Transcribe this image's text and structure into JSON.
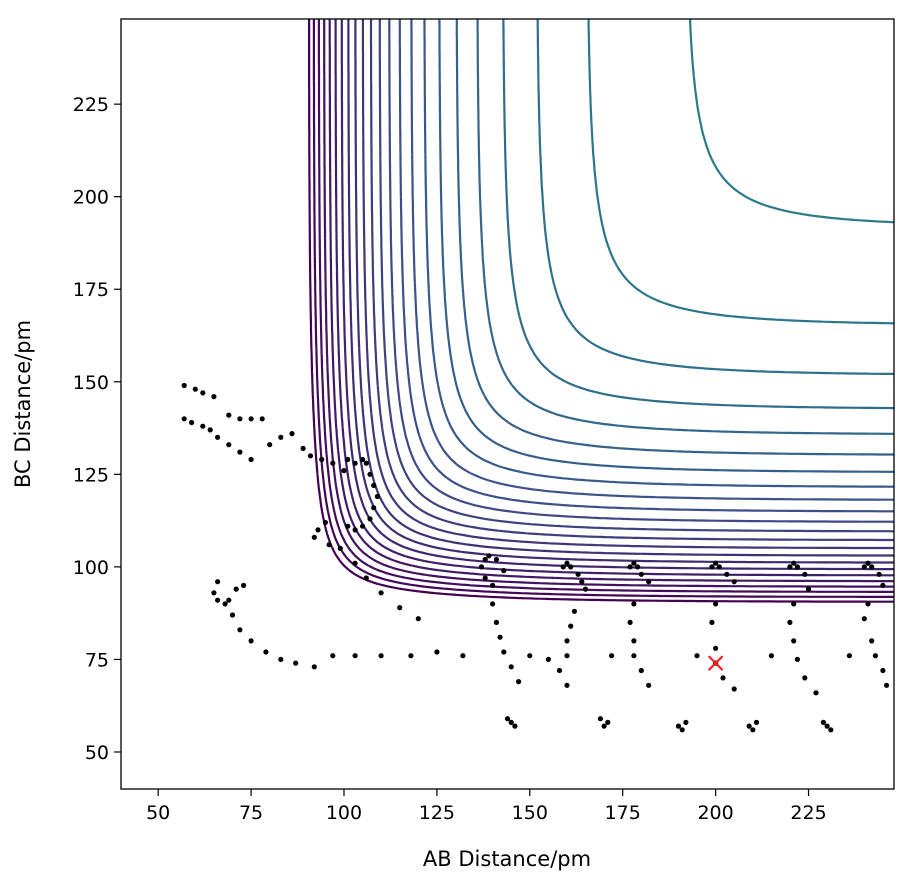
{
  "chart_data": {
    "type": "contour",
    "title": "",
    "xlabel": "AB Distance/pm",
    "ylabel": "BC Distance/pm",
    "xlim": [
      40,
      248
    ],
    "ylim": [
      40,
      248
    ],
    "x_ticks": [
      50,
      75,
      100,
      125,
      150,
      175,
      200,
      225
    ],
    "y_ticks": [
      50,
      75,
      100,
      125,
      150,
      175,
      200,
      225
    ],
    "x_tick_labels": [
      "50",
      "75",
      "100",
      "125",
      "150",
      "175",
      "200",
      "225"
    ],
    "y_tick_labels": [
      "50",
      "75",
      "100",
      "125",
      "150",
      "175",
      "200",
      "225"
    ],
    "colormap": "viridis",
    "colormap_stops": [
      "#440154",
      "#3b528b",
      "#21918c",
      "#5ec962",
      "#fde725"
    ],
    "grid": false,
    "legend": "none",
    "potential_surface": {
      "well_depth": 1,
      "equilibrium_distance_pm": 74,
      "morse_a": 0.035,
      "contour_levels_count": 55,
      "contour_level_min": -1.12,
      "contour_level_max": 1.55
    },
    "trajectory": {
      "series_name": "",
      "points": [
        [
          57,
          149
        ],
        [
          60,
          148
        ],
        [
          62,
          147
        ],
        [
          65,
          146
        ],
        [
          57,
          140
        ],
        [
          59,
          139
        ],
        [
          62,
          138
        ],
        [
          64,
          137
        ],
        [
          69,
          141
        ],
        [
          72,
          140
        ],
        [
          75,
          140
        ],
        [
          78,
          140
        ],
        [
          66,
          135
        ],
        [
          69,
          133
        ],
        [
          72,
          131
        ],
        [
          75,
          129
        ],
        [
          80,
          133
        ],
        [
          83,
          135
        ],
        [
          86,
          136
        ],
        [
          89,
          132
        ],
        [
          91,
          130
        ],
        [
          94,
          129
        ],
        [
          97,
          128
        ],
        [
          100,
          126
        ],
        [
          101,
          129
        ],
        [
          103,
          128
        ],
        [
          105,
          129
        ],
        [
          106,
          128
        ],
        [
          107,
          125
        ],
        [
          108,
          122
        ],
        [
          109,
          119
        ],
        [
          108,
          116
        ],
        [
          107,
          113
        ],
        [
          105,
          111
        ],
        [
          103,
          110
        ],
        [
          101,
          111
        ],
        [
          95,
          112
        ],
        [
          93,
          110
        ],
        [
          92,
          108
        ],
        [
          96,
          106
        ],
        [
          99,
          105
        ],
        [
          103,
          101
        ],
        [
          106,
          97
        ],
        [
          110,
          93
        ],
        [
          115,
          89
        ],
        [
          120,
          86
        ],
        [
          66,
          96
        ],
        [
          65,
          93
        ],
        [
          66,
          91
        ],
        [
          68,
          90
        ],
        [
          69,
          91
        ],
        [
          71,
          94
        ],
        [
          73,
          95
        ],
        [
          70,
          87
        ],
        [
          72,
          83
        ],
        [
          75,
          80
        ],
        [
          79,
          77
        ],
        [
          83,
          75
        ],
        [
          87,
          74
        ],
        [
          92,
          73
        ],
        [
          97,
          76
        ],
        [
          103,
          76
        ],
        [
          110,
          76
        ],
        [
          118,
          76
        ],
        [
          125,
          77
        ],
        [
          132,
          76
        ],
        [
          137,
          100
        ],
        [
          138,
          102
        ],
        [
          139,
          103
        ],
        [
          141,
          102
        ],
        [
          138,
          97
        ],
        [
          140,
          95
        ],
        [
          143,
          99
        ],
        [
          140,
          90
        ],
        [
          141,
          85
        ],
        [
          142,
          81
        ],
        [
          143,
          77
        ],
        [
          145,
          73
        ],
        [
          147,
          69
        ],
        [
          145,
          58
        ],
        [
          146,
          57
        ],
        [
          144,
          59
        ],
        [
          150,
          76
        ],
        [
          155,
          75
        ],
        [
          159,
          100
        ],
        [
          160,
          101
        ],
        [
          161,
          100
        ],
        [
          163,
          98
        ],
        [
          164,
          96
        ],
        [
          165,
          94
        ],
        [
          162,
          88
        ],
        [
          161,
          84
        ],
        [
          160,
          80
        ],
        [
          160,
          76
        ],
        [
          158,
          72
        ],
        [
          160,
          68
        ],
        [
          169,
          59
        ],
        [
          170,
          57
        ],
        [
          171,
          58
        ],
        [
          172,
          76
        ],
        [
          177,
          100
        ],
        [
          178,
          101
        ],
        [
          179,
          100
        ],
        [
          180,
          98
        ],
        [
          182,
          96
        ],
        [
          178,
          90
        ],
        [
          177,
          85
        ],
        [
          178,
          80
        ],
        [
          178,
          76
        ],
        [
          180,
          72
        ],
        [
          182,
          68
        ],
        [
          190,
          57
        ],
        [
          191,
          56
        ],
        [
          192,
          58
        ],
        [
          195,
          76
        ],
        [
          199,
          100
        ],
        [
          200,
          101
        ],
        [
          201,
          100
        ],
        [
          203,
          98
        ],
        [
          205,
          96
        ],
        [
          200,
          90
        ],
        [
          199,
          85
        ],
        [
          200,
          78
        ],
        [
          200,
          74
        ],
        [
          202,
          70
        ],
        [
          205,
          67
        ],
        [
          209,
          57
        ],
        [
          210,
          56
        ],
        [
          211,
          58
        ],
        [
          215,
          76
        ],
        [
          220,
          100
        ],
        [
          221,
          101
        ],
        [
          222,
          100
        ],
        [
          224,
          98
        ],
        [
          225,
          94
        ],
        [
          221,
          90
        ],
        [
          220,
          85
        ],
        [
          221,
          80
        ],
        [
          222,
          75
        ],
        [
          224,
          70
        ],
        [
          227,
          66
        ],
        [
          229,
          58
        ],
        [
          230,
          57
        ],
        [
          231,
          56
        ],
        [
          236,
          76
        ],
        [
          240,
          100
        ],
        [
          241,
          101
        ],
        [
          242,
          100
        ],
        [
          244,
          98
        ],
        [
          245,
          95
        ],
        [
          241,
          90
        ],
        [
          240,
          86
        ],
        [
          242,
          80
        ],
        [
          243,
          76
        ],
        [
          245,
          72
        ],
        [
          246,
          68
        ]
      ]
    },
    "start_marker": {
      "x": 200,
      "y": 74,
      "color": "#ee2222",
      "symbol": "x"
    }
  }
}
